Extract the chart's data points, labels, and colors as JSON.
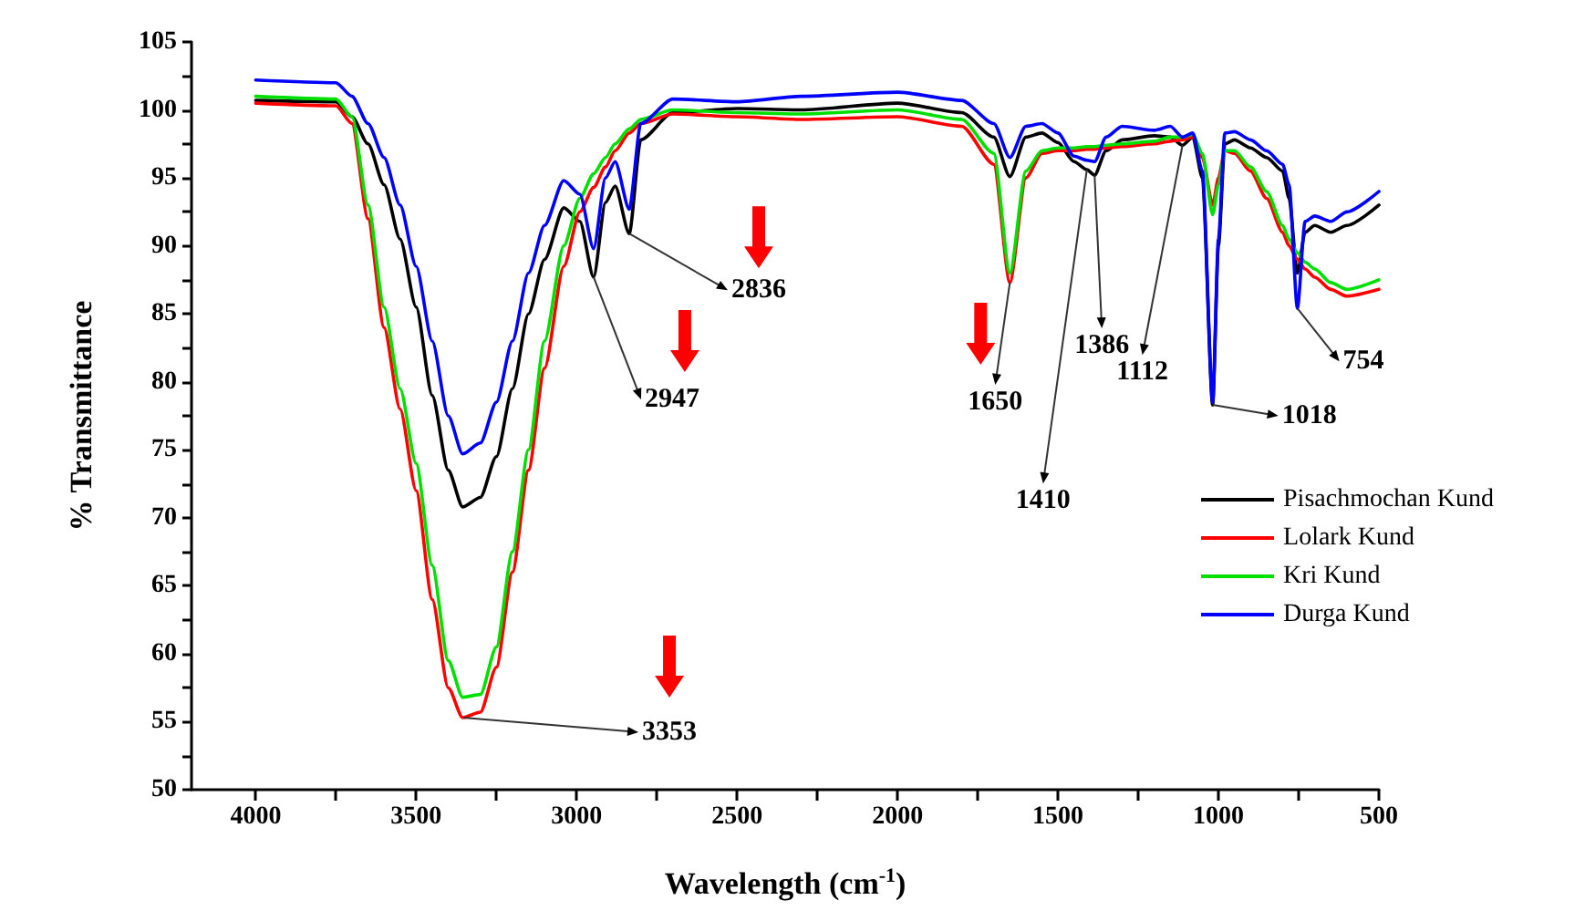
{
  "chart_data": {
    "type": "line",
    "xlabel": "Wavelength (cm$^{-1}$)",
    "ylabel": "% Transmittance",
    "x": [
      4000,
      3750,
      3700,
      3650,
      3600,
      3550,
      3500,
      3450,
      3400,
      3355,
      3300,
      3250,
      3200,
      3150,
      3100,
      3040,
      2990,
      2947,
      2910,
      2880,
      2836,
      2800,
      2700,
      2500,
      2300,
      2000,
      1800,
      1700,
      1650,
      1600,
      1550,
      1500,
      1450,
      1410,
      1386,
      1350,
      1300,
      1200,
      1150,
      1112,
      1080,
      1050,
      1018,
      1000,
      980,
      950,
      900,
      850,
      800,
      780,
      754,
      730,
      700,
      650,
      600,
      500
    ],
    "series": [
      {
        "name": "Pisachmochan Kund",
        "color": "#000000",
        "values": [
          100.7,
          100.6,
          99.5,
          97.5,
          94.5,
          90.5,
          85.5,
          79,
          73.5,
          70.8,
          71.5,
          74.5,
          79.5,
          85,
          89,
          92.8,
          91.8,
          87.7,
          93.2,
          94.4,
          90.9,
          97.8,
          99.8,
          100.1,
          100,
          100.5,
          99.8,
          98,
          95.1,
          98,
          98.3,
          97.6,
          96.2,
          95.6,
          95.2,
          97,
          97.8,
          98.1,
          98,
          97.4,
          98,
          95,
          78.3,
          90,
          97.5,
          97.8,
          97.2,
          96.5,
          95.5,
          93.5,
          88,
          91,
          91.5,
          91,
          91.5,
          93
        ]
      },
      {
        "name": "Lolark Kund",
        "color": "#ff0000",
        "values": [
          100.5,
          100.3,
          99,
          92,
          84,
          78,
          72,
          64,
          57.5,
          55.3,
          55.7,
          59,
          66,
          73.5,
          81,
          88.5,
          92.5,
          94.3,
          95.8,
          97,
          98.3,
          99,
          99.7,
          99.5,
          99.3,
          99.5,
          98.8,
          96,
          87.3,
          95,
          96.8,
          97,
          97,
          97.1,
          97.1,
          97.2,
          97.3,
          97.5,
          97.7,
          97.8,
          98,
          96.5,
          93,
          95,
          97,
          96.8,
          95.5,
          93.5,
          91,
          90,
          89,
          88.3,
          87.7,
          86.8,
          86.3,
          86.8
        ]
      },
      {
        "name": "Kri Kund",
        "color": "#00e000",
        "values": [
          101,
          100.8,
          99.5,
          93,
          85.5,
          79.5,
          74,
          66.5,
          59.5,
          56.8,
          57,
          60.5,
          67.5,
          75,
          83,
          90,
          93.5,
          95.3,
          96.5,
          97.5,
          98.6,
          99.3,
          100,
          99.8,
          99.7,
          100,
          99.3,
          96.8,
          88,
          95.5,
          97,
          97.2,
          97.2,
          97.3,
          97.3,
          97.4,
          97.5,
          97.7,
          98,
          98,
          98.2,
          96.8,
          92.3,
          94.5,
          97,
          97,
          95.8,
          94,
          91.5,
          90.5,
          89.5,
          88.8,
          88.3,
          87.3,
          86.8,
          87.5
        ]
      },
      {
        "name": "Durga Kund",
        "color": "#0000ff",
        "values": [
          102.2,
          102,
          101,
          99,
          96.5,
          93,
          88.5,
          83,
          77.5,
          74.7,
          75.5,
          78.5,
          83,
          88,
          91.5,
          94.8,
          93.8,
          89.8,
          95,
          96.2,
          92.7,
          99,
          100.8,
          100.6,
          101,
          101.3,
          100.7,
          99,
          96.5,
          98.8,
          99,
          98.3,
          96.6,
          96.3,
          96.2,
          98,
          98.8,
          98.5,
          98.8,
          98,
          98.3,
          95.5,
          78.5,
          90.5,
          98.3,
          98.4,
          97.8,
          97,
          96,
          94.5,
          85.4,
          91.8,
          92.2,
          91.8,
          92.5,
          94
        ]
      }
    ],
    "xlim": [
      4200,
      500
    ],
    "xticks": [
      4000,
      {
        "value": 3750,
        "label": null
      },
      3500,
      {
        "value": 3250,
        "label": null
      },
      3000,
      {
        "value": 2750,
        "label": null
      },
      2500,
      {
        "value": 2250,
        "label": null
      },
      2000,
      {
        "value": 1750,
        "label": null
      },
      1500,
      {
        "value": 1250,
        "label": null
      },
      1000,
      {
        "value": 750,
        "label": null
      },
      500
    ],
    "ylim": [
      50,
      105
    ],
    "yticks": [
      50,
      {
        "value": 52.5,
        "label": null
      },
      55,
      {
        "value": 57.5,
        "label": null
      },
      60,
      {
        "value": 62.5,
        "label": null
      },
      65,
      {
        "value": 67.5,
        "label": null
      },
      70,
      {
        "value": 72.5,
        "label": null
      },
      75,
      {
        "value": 77.5,
        "label": null
      },
      80,
      {
        "value": 82.5,
        "label": null
      },
      85,
      {
        "value": 87.5,
        "label": null
      },
      90,
      {
        "value": 92.5,
        "label": null
      },
      95,
      {
        "value": 97.5,
        "label": null
      },
      100,
      {
        "value": 102.5,
        "label": null
      },
      105
    ],
    "annotations": [
      {
        "text": "3353",
        "x": 3353,
        "y": 55.3
      },
      {
        "text": "2947",
        "x": 2947,
        "y": 87.7
      },
      {
        "text": "2836",
        "x": 2836,
        "y": 90.9
      },
      {
        "text": "1650",
        "x": 1650,
        "y": 87.3
      },
      {
        "text": "1410",
        "x": 1410,
        "y": 95.6
      },
      {
        "text": "1386",
        "x": 1386,
        "y": 95.2
      },
      {
        "text": "1112",
        "x": 1112,
        "y": 97.4
      },
      {
        "text": "1018",
        "x": 1018,
        "y": 78.3
      },
      {
        "text": "754",
        "x": 754,
        "y": 85.4
      }
    ],
    "grid": false,
    "legend": "right",
    "marker": "none",
    "line_style": "solid"
  }
}
